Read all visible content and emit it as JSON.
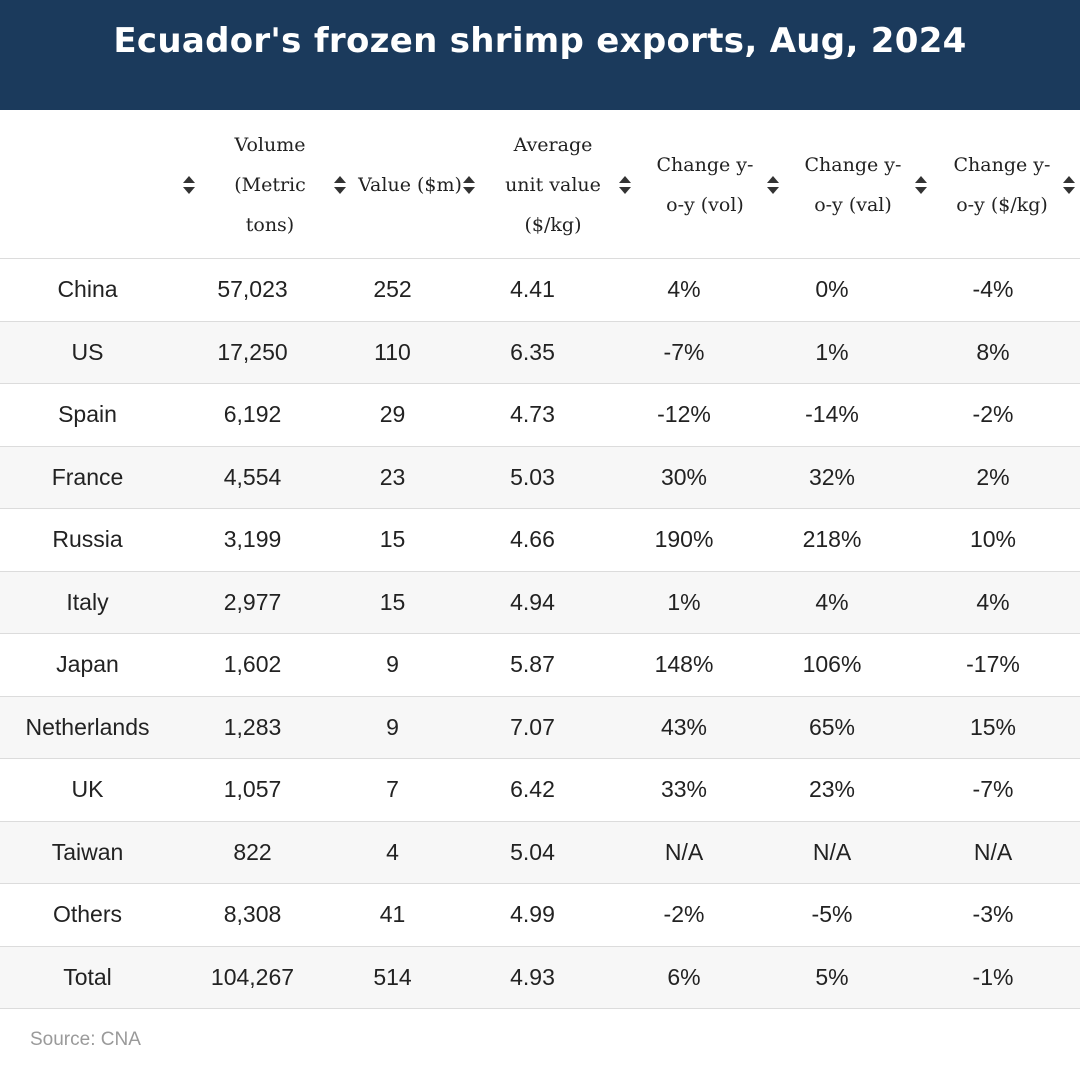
{
  "title": "Ecuador's frozen shrimp exports, Aug, 2024",
  "columns": [
    {
      "key": "country",
      "label": ""
    },
    {
      "key": "volume",
      "label": "Volume (Metric tons)"
    },
    {
      "key": "value",
      "label": "Value ($m)"
    },
    {
      "key": "avg_unit_value",
      "label": "Average unit value ($/kg)"
    },
    {
      "key": "chg_vol",
      "label": "Change y-o-y (vol)"
    },
    {
      "key": "chg_val",
      "label": "Change y-o-y (val)"
    },
    {
      "key": "chg_unit",
      "label": "Change y-o-y ($/kg)"
    }
  ],
  "sort_icon": "sort-updown-icon",
  "rows": [
    {
      "country": "China",
      "volume": "57,023",
      "value": "252",
      "avg_unit_value": "4.41",
      "chg_vol": "4%",
      "chg_val": "0%",
      "chg_unit": "-4%"
    },
    {
      "country": "US",
      "volume": "17,250",
      "value": "110",
      "avg_unit_value": "6.35",
      "chg_vol": "-7%",
      "chg_val": "1%",
      "chg_unit": "8%"
    },
    {
      "country": "Spain",
      "volume": "6,192",
      "value": "29",
      "avg_unit_value": "4.73",
      "chg_vol": "-12%",
      "chg_val": "-14%",
      "chg_unit": "-2%"
    },
    {
      "country": "France",
      "volume": "4,554",
      "value": "23",
      "avg_unit_value": "5.03",
      "chg_vol": "30%",
      "chg_val": "32%",
      "chg_unit": "2%"
    },
    {
      "country": "Russia",
      "volume": "3,199",
      "value": "15",
      "avg_unit_value": "4.66",
      "chg_vol": "190%",
      "chg_val": "218%",
      "chg_unit": "10%"
    },
    {
      "country": "Italy",
      "volume": "2,977",
      "value": "15",
      "avg_unit_value": "4.94",
      "chg_vol": "1%",
      "chg_val": "4%",
      "chg_unit": "4%"
    },
    {
      "country": "Japan",
      "volume": "1,602",
      "value": "9",
      "avg_unit_value": "5.87",
      "chg_vol": "148%",
      "chg_val": "106%",
      "chg_unit": "-17%"
    },
    {
      "country": "Netherlands",
      "volume": "1,283",
      "value": "9",
      "avg_unit_value": "7.07",
      "chg_vol": "43%",
      "chg_val": "65%",
      "chg_unit": "15%"
    },
    {
      "country": "UK",
      "volume": "1,057",
      "value": "7",
      "avg_unit_value": "6.42",
      "chg_vol": "33%",
      "chg_val": "23%",
      "chg_unit": "-7%"
    },
    {
      "country": "Taiwan",
      "volume": "822",
      "value": "4",
      "avg_unit_value": "5.04",
      "chg_vol": "N/A",
      "chg_val": "N/A",
      "chg_unit": "N/A"
    },
    {
      "country": "Others",
      "volume": "8,308",
      "value": "41",
      "avg_unit_value": "4.99",
      "chg_vol": "-2%",
      "chg_val": "-5%",
      "chg_unit": "-3%"
    },
    {
      "country": "Total",
      "volume": "104,267",
      "value": "514",
      "avg_unit_value": "4.93",
      "chg_vol": "6%",
      "chg_val": "5%",
      "chg_unit": "-1%"
    }
  ],
  "source": "Source: CNA",
  "colors": {
    "header_bg": "#1b3a5c",
    "row_alt": "#f7f7f7",
    "border": "#dcdcdc",
    "source_text": "#9a9a9a"
  }
}
